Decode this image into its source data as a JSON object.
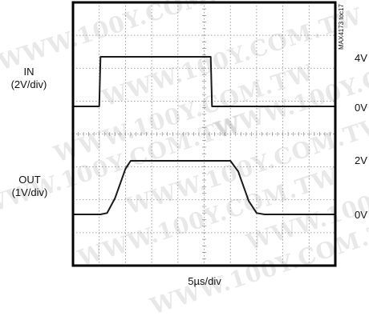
{
  "watermark": "WWW.100Y.COM.TW",
  "figure_id": "MAX4173 toc17",
  "chart_data": {
    "type": "line",
    "title": "",
    "xlabel": "5µs/div",
    "grid": true,
    "divisions": {
      "x": 10,
      "y": 8
    },
    "channels": [
      {
        "name": "IN",
        "label_lines": [
          "IN",
          "(2V/div)"
        ],
        "scale": "2V/div",
        "level_labels": [
          "4V",
          "0V"
        ],
        "points": [
          [
            0.0,
            0
          ],
          [
            1.0,
            0
          ],
          [
            1.05,
            4
          ],
          [
            5.25,
            4
          ],
          [
            5.3,
            0
          ],
          [
            10.0,
            0
          ]
        ]
      },
      {
        "name": "OUT",
        "label_lines": [
          "OUT",
          "(1V/div)"
        ],
        "scale": "1V/div",
        "level_labels": [
          "2V",
          "0V"
        ],
        "points": [
          [
            0.0,
            0
          ],
          [
            1.05,
            0
          ],
          [
            1.3,
            0.05
          ],
          [
            1.6,
            0.6
          ],
          [
            2.0,
            1.7
          ],
          [
            2.2,
            2.0
          ],
          [
            6.0,
            2.0
          ],
          [
            6.3,
            1.6
          ],
          [
            6.7,
            0.5
          ],
          [
            7.0,
            0.05
          ],
          [
            7.3,
            0
          ],
          [
            10.0,
            0
          ]
        ]
      }
    ]
  }
}
